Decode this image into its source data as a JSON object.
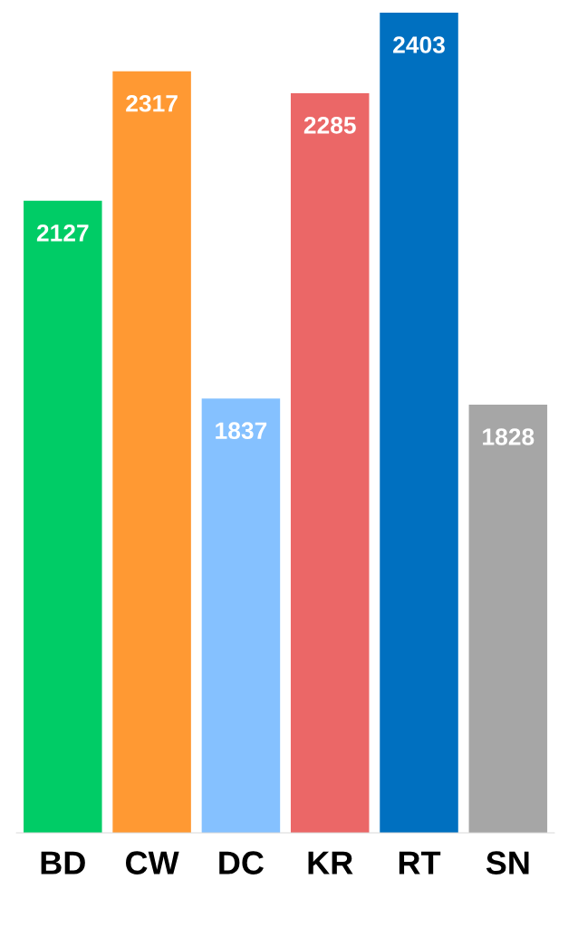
{
  "chart_data": {
    "type": "bar",
    "categories": [
      "BD",
      "CW",
      "DC",
      "KR",
      "RT",
      "SN"
    ],
    "values": [
      2127,
      2317,
      1837,
      2285,
      2403,
      1828
    ],
    "colors": [
      "#00cc66",
      "#ff9933",
      "#85c1ff",
      "#eb6767",
      "#0070c0",
      "#a6a6a6"
    ],
    "ylim": [
      1200,
      2403
    ],
    "tick_labels": "x",
    "data_labels": true,
    "grid": false,
    "legend": false
  }
}
